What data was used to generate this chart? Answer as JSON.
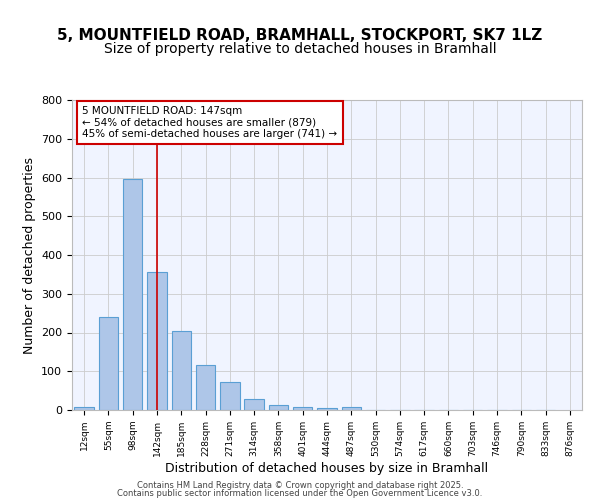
{
  "title": "5, MOUNTFIELD ROAD, BRAMHALL, STOCKPORT, SK7 1LZ",
  "subtitle": "Size of property relative to detached houses in Bramhall",
  "xlabel": "Distribution of detached houses by size in Bramhall",
  "ylabel": "Number of detached properties",
  "bar_values": [
    8,
    240,
    595,
    355,
    205,
    115,
    72,
    28,
    14,
    7,
    5,
    8,
    0,
    0,
    0,
    0,
    0,
    0,
    0,
    0
  ],
  "categories": [
    "12sqm",
    "55sqm",
    "98sqm",
    "142sqm",
    "185sqm",
    "228sqm",
    "271sqm",
    "314sqm",
    "358sqm",
    "401sqm",
    "444sqm",
    "487sqm",
    "530sqm",
    "574sqm",
    "617sqm",
    "660sqm",
    "703sqm",
    "746sqm",
    "790sqm",
    "833sqm",
    "876sqm"
  ],
  "bar_color": "#aec6e8",
  "bar_edgecolor": "#5a9fd4",
  "vline_x": 3,
  "vline_color": "#cc0000",
  "annotation_text": "5 MOUNTFIELD ROAD: 147sqm\n← 54% of detached houses are smaller (879)\n45% of semi-detached houses are larger (741) →",
  "annotation_box_color": "#cc0000",
  "ylim": [
    0,
    800
  ],
  "yticks": [
    0,
    100,
    200,
    300,
    400,
    500,
    600,
    700,
    800
  ],
  "grid_color": "#cccccc",
  "background_color": "#f0f4ff",
  "footer_line1": "Contains HM Land Registry data © Crown copyright and database right 2025.",
  "footer_line2": "Contains public sector information licensed under the Open Government Licence v3.0.",
  "title_fontsize": 11,
  "subtitle_fontsize": 10,
  "xlabel_fontsize": 9,
  "ylabel_fontsize": 9
}
